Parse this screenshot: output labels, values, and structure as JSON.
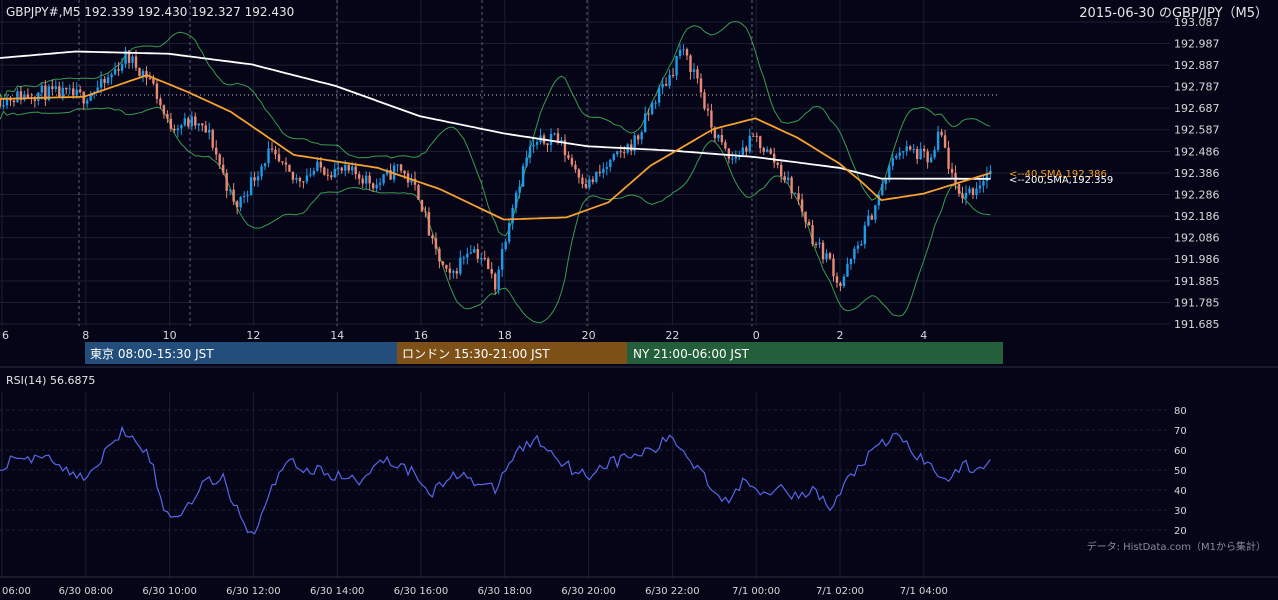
{
  "header": {
    "symbol_info": "GBPJPY#,M5 192.339 192.430 192.327 192.430",
    "title": "2015-06-30 のGBP/JPY（M5）"
  },
  "colors": {
    "background": "#050517",
    "grid": "#1b1e33",
    "up_candle": "#1f9be8",
    "down_candle": "#e88a75",
    "sma40": "#f5a030",
    "sma200": "#ffffff",
    "bollinger": "#3a9a4e",
    "rsi": "#5866e8",
    "session_tokyo": "#234e7c",
    "session_london": "#7d5018",
    "session_ny": "#235f3a"
  },
  "price_axis": {
    "ticks": [
      "193.087",
      "192.987",
      "192.887",
      "192.787",
      "192.687",
      "192.587",
      "192.486",
      "192.386",
      "192.286",
      "192.186",
      "192.086",
      "191.986",
      "191.885",
      "191.785",
      "191.685"
    ],
    "range": [
      191.685,
      193.087
    ]
  },
  "time_axis": {
    "top_labels": [
      "6",
      "8",
      "10",
      "12",
      "14",
      "16",
      "18",
      "20",
      "22",
      "0",
      "2",
      "4"
    ],
    "bottom_labels": [
      "06:00",
      "6/30 08:00",
      "6/30 10:00",
      "6/30 12:00",
      "6/30 14:00",
      "6/30 16:00",
      "6/30 18:00",
      "6/30 20:00",
      "6/30 22:00",
      "7/1 00:00",
      "7/1 02:00",
      "7/1 04:00"
    ]
  },
  "sessions": [
    {
      "label": "東京 08:00-15:30 JST"
    },
    {
      "label": "ロンドン 15:30-21:00 JST"
    },
    {
      "label": "NY 21:00-06:00 JST"
    }
  ],
  "indicators": {
    "sma40_label": "<--40,SMA,192.386",
    "sma200_label": "<--200,SMA,192.359",
    "rsi_label": "RSI(14) 56.6875",
    "rsi_ticks": [
      "80",
      "70",
      "60",
      "50",
      "40",
      "30",
      "20"
    ]
  },
  "source_note": "データ: HistData.com（M1から集計）",
  "chart_data": {
    "type": "candlestick",
    "symbol": "GBPJPY",
    "timeframe": "M5",
    "x_range_hours": [
      6.0,
      29.6
    ],
    "ylim": [
      191.685,
      193.087
    ],
    "rsi_ylim": [
      15,
      85
    ],
    "anchors": [
      [
        6.0,
        192.73
      ],
      [
        7.0,
        192.76
      ],
      [
        8.0,
        192.74
      ],
      [
        8.5,
        192.8
      ],
      [
        9.0,
        192.93
      ],
      [
        9.6,
        192.82
      ],
      [
        10.0,
        192.61
      ],
      [
        10.6,
        192.62
      ],
      [
        11.0,
        192.56
      ],
      [
        11.6,
        192.22
      ],
      [
        12.4,
        192.48
      ],
      [
        13.0,
        192.35
      ],
      [
        13.6,
        192.41
      ],
      [
        14.5,
        192.38
      ],
      [
        15.0,
        192.33
      ],
      [
        15.5,
        192.42
      ],
      [
        16.0,
        192.28
      ],
      [
        16.3,
        192.05
      ],
      [
        16.7,
        191.89
      ],
      [
        17.2,
        192.05
      ],
      [
        17.5,
        191.99
      ],
      [
        17.8,
        191.87
      ],
      [
        18.2,
        192.24
      ],
      [
        18.6,
        192.49
      ],
      [
        19.2,
        192.57
      ],
      [
        19.6,
        192.44
      ],
      [
        20.0,
        192.33
      ],
      [
        20.6,
        192.44
      ],
      [
        21.2,
        192.55
      ],
      [
        21.6,
        192.73
      ],
      [
        22.0,
        192.85
      ],
      [
        22.2,
        192.96
      ],
      [
        22.6,
        192.84
      ],
      [
        22.9,
        192.62
      ],
      [
        23.4,
        192.44
      ],
      [
        24.0,
        192.55
      ],
      [
        24.5,
        192.43
      ],
      [
        25.0,
        192.27
      ],
      [
        25.4,
        192.07
      ],
      [
        25.8,
        191.97
      ],
      [
        26.0,
        191.86
      ],
      [
        26.5,
        192.07
      ],
      [
        26.9,
        192.26
      ],
      [
        27.4,
        192.5
      ],
      [
        27.8,
        192.48
      ],
      [
        28.2,
        192.44
      ],
      [
        28.4,
        192.58
      ],
      [
        28.8,
        192.28
      ],
      [
        29.2,
        192.31
      ],
      [
        29.6,
        192.4
      ]
    ],
    "sma40_anchors": [
      [
        6.0,
        192.73
      ],
      [
        8.0,
        192.74
      ],
      [
        9.5,
        192.84
      ],
      [
        10.5,
        192.76
      ],
      [
        11.5,
        192.67
      ],
      [
        13.0,
        192.47
      ],
      [
        15.0,
        192.41
      ],
      [
        16.5,
        192.31
      ],
      [
        18.0,
        192.17
      ],
      [
        19.5,
        192.18
      ],
      [
        20.5,
        192.25
      ],
      [
        21.5,
        192.42
      ],
      [
        23.0,
        192.59
      ],
      [
        24.0,
        192.64
      ],
      [
        25.0,
        192.55
      ],
      [
        26.0,
        192.43
      ],
      [
        26.5,
        192.35
      ],
      [
        27.0,
        192.26
      ],
      [
        28.0,
        192.29
      ],
      [
        29.0,
        192.35
      ],
      [
        29.6,
        192.386
      ]
    ],
    "sma200_anchors": [
      [
        6.0,
        192.92
      ],
      [
        7.8,
        192.95
      ],
      [
        10.0,
        192.94
      ],
      [
        12.0,
        192.89
      ],
      [
        14.0,
        192.79
      ],
      [
        16.0,
        192.65
      ],
      [
        18.0,
        192.57
      ],
      [
        20.0,
        192.51
      ],
      [
        22.0,
        192.49
      ],
      [
        24.0,
        192.46
      ],
      [
        26.0,
        192.41
      ],
      [
        27.0,
        192.36
      ],
      [
        29.6,
        192.359
      ]
    ],
    "rsi_anchors": [
      [
        6.0,
        48
      ],
      [
        6.4,
        58
      ],
      [
        6.8,
        55
      ],
      [
        7.2,
        57
      ],
      [
        7.8,
        46
      ],
      [
        8.3,
        50
      ],
      [
        8.6,
        62
      ],
      [
        8.9,
        70
      ],
      [
        9.2,
        68
      ],
      [
        9.6,
        55
      ],
      [
        9.9,
        29
      ],
      [
        10.3,
        27
      ],
      [
        10.8,
        43
      ],
      [
        11.3,
        46
      ],
      [
        11.6,
        33
      ],
      [
        12.0,
        17
      ],
      [
        12.3,
        31
      ],
      [
        12.8,
        56
      ],
      [
        13.3,
        50
      ],
      [
        13.7,
        49
      ],
      [
        14.2,
        46
      ],
      [
        14.6,
        44
      ],
      [
        15.0,
        56
      ],
      [
        15.5,
        53
      ],
      [
        15.9,
        48
      ],
      [
        16.3,
        39
      ],
      [
        16.7,
        45
      ],
      [
        17.0,
        50
      ],
      [
        17.4,
        42
      ],
      [
        17.8,
        40
      ],
      [
        18.0,
        49
      ],
      [
        18.4,
        61
      ],
      [
        18.8,
        65
      ],
      [
        19.2,
        58
      ],
      [
        19.6,
        51
      ],
      [
        20.0,
        47
      ],
      [
        20.4,
        53
      ],
      [
        20.8,
        55
      ],
      [
        21.2,
        58
      ],
      [
        21.6,
        60
      ],
      [
        22.0,
        67
      ],
      [
        22.4,
        56
      ],
      [
        22.8,
        48
      ],
      [
        23.0,
        39
      ],
      [
        23.4,
        35
      ],
      [
        23.8,
        46
      ],
      [
        24.2,
        38
      ],
      [
        24.6,
        44
      ],
      [
        25.0,
        35
      ],
      [
        25.4,
        40
      ],
      [
        25.8,
        30
      ],
      [
        26.2,
        45
      ],
      [
        26.6,
        55
      ],
      [
        27.0,
        62
      ],
      [
        27.4,
        68
      ],
      [
        27.8,
        58
      ],
      [
        28.2,
        51
      ],
      [
        28.6,
        46
      ],
      [
        29.0,
        52
      ],
      [
        29.3,
        49
      ],
      [
        29.6,
        56.69
      ]
    ]
  }
}
